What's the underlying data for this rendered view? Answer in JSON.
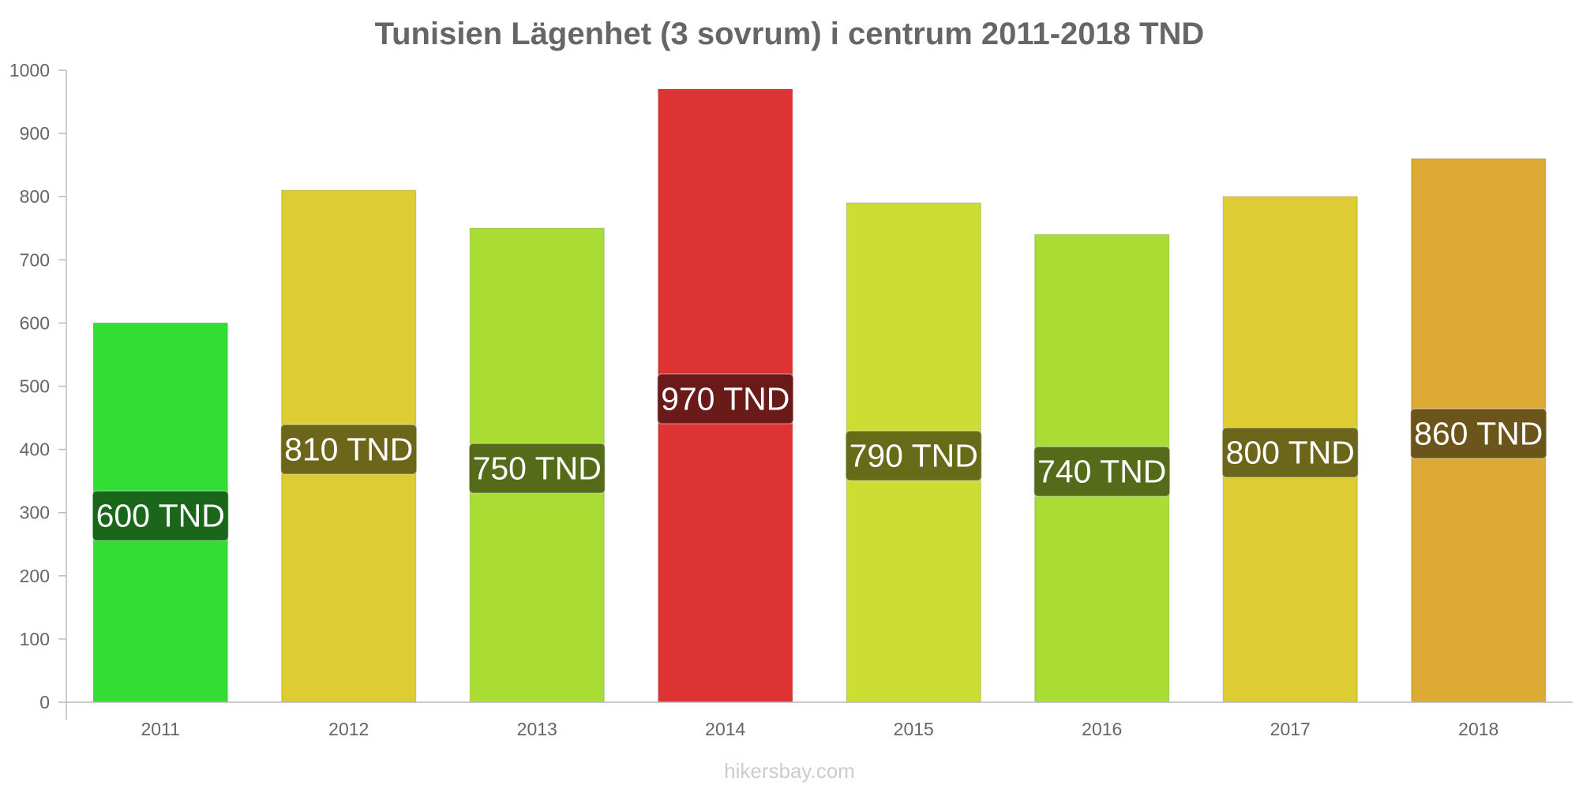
{
  "chart_data": {
    "type": "bar",
    "title": "Tunisien Lägenhet (3 sovrum) i centrum 2011-2018 TND",
    "xlabel": "",
    "ylabel": "",
    "categories": [
      "2011",
      "2012",
      "2013",
      "2014",
      "2015",
      "2016",
      "2017",
      "2018"
    ],
    "values": [
      600,
      810,
      750,
      970,
      790,
      740,
      800,
      860
    ],
    "data_labels": [
      "600 TND",
      "810 TND",
      "750 TND",
      "970 TND",
      "790 TND",
      "740 TND",
      "800 TND",
      "860 TND"
    ],
    "ylim": [
      0,
      1000
    ],
    "yticks": [
      "0",
      "100",
      "200",
      "300",
      "400",
      "500",
      "600",
      "700",
      "800",
      "900",
      "1000"
    ],
    "grid": false,
    "legend": "none",
    "bar_colors": [
      "#33dd33",
      "#ddcc33",
      "#aadd33",
      "#dd3333",
      "#ccdd33",
      "#aadd33",
      "#ddcc33",
      "#ddaa33"
    ],
    "label_colors": [
      "#1a661a",
      "#6b661a",
      "#556b1a",
      "#6b1a1a",
      "#666b1a",
      "#556b1a",
      "#6b661a",
      "#6b551a"
    ]
  },
  "watermark": "hikersbay.com"
}
